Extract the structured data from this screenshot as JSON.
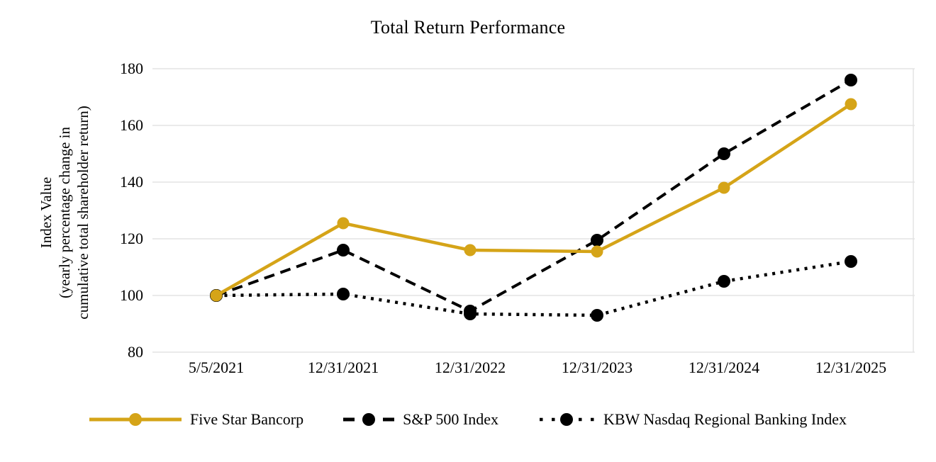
{
  "title": "Total Return Performance",
  "y_axis": {
    "line1": "Index Value",
    "line2": "(yearly percentage change in",
    "line3": "cumulative total shareholder return)"
  },
  "chart_data": {
    "type": "line",
    "title": "Total Return Performance",
    "categories": [
      "5/5/2021",
      "12/31/2021",
      "12/31/2022",
      "12/31/2023",
      "12/31/2024",
      "12/31/2025"
    ],
    "series": [
      {
        "name": "Five Star Bancorp",
        "values": [
          100,
          125.5,
          116,
          115.5,
          138,
          167.5
        ],
        "color": "#D5A418",
        "line_style": "solid",
        "marker": "circle"
      },
      {
        "name": "S&P 500 Index",
        "values": [
          100,
          116,
          94.5,
          119.5,
          150,
          176
        ],
        "color": "#000000",
        "line_style": "dashed",
        "marker": "circle"
      },
      {
        "name": "KBW Nasdaq Regional Banking Index",
        "values": [
          100,
          100.5,
          93.5,
          93,
          105,
          112
        ],
        "color": "#000000",
        "line_style": "dotted",
        "marker": "circle"
      }
    ],
    "ylabel": "Index Value (yearly percentage change in cumulative total shareholder return)",
    "yticks": [
      80,
      100,
      120,
      140,
      160,
      180
    ],
    "ylim": [
      80,
      180
    ],
    "grid": "horizontal-only",
    "gridline_color": "#E3E3E3",
    "background": "#FFFFFF",
    "legend_position": "bottom"
  }
}
